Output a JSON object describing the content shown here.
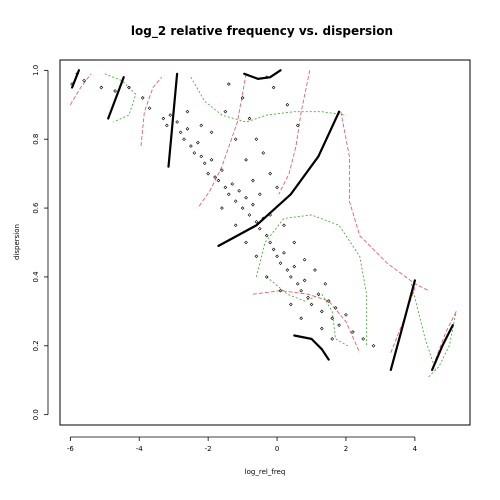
{
  "chart_data": {
    "type": "scatter",
    "title": "log_2 relative frequency vs. dispersion",
    "xlabel": "log_rel_freq",
    "ylabel": "dispersion",
    "xlim": [
      -6.3,
      5.6
    ],
    "ylim": [
      -0.03,
      1.03
    ],
    "xticks": [
      "-6",
      "-4",
      "-2",
      "0",
      "2",
      "4"
    ],
    "xtick_values": [
      -6,
      -4,
      -2,
      0,
      2,
      4
    ],
    "yticks": [
      "0.0",
      "0.2",
      "0.4",
      "0.6",
      "0.8",
      "1.0"
    ],
    "ytick_values": [
      0.0,
      0.2,
      0.4,
      0.6,
      0.8,
      1.0
    ],
    "grid": false,
    "colors": {
      "points": "#000000",
      "fit": "#000000",
      "band_red": "#e0607a",
      "band_green": "#4caf3a"
    },
    "points": [
      [
        -5.95,
        0.96
      ],
      [
        -5.8,
        0.99
      ],
      [
        -5.6,
        0.97
      ],
      [
        -5.1,
        0.95
      ],
      [
        -4.7,
        0.94
      ],
      [
        -4.3,
        0.95
      ],
      [
        -3.9,
        0.92
      ],
      [
        -3.7,
        0.89
      ],
      [
        -3.3,
        0.86
      ],
      [
        -3.2,
        0.84
      ],
      [
        -3.1,
        0.87
      ],
      [
        -2.9,
        0.85
      ],
      [
        -2.8,
        0.82
      ],
      [
        -2.7,
        0.8
      ],
      [
        -2.6,
        0.83
      ],
      [
        -2.5,
        0.78
      ],
      [
        -2.4,
        0.76
      ],
      [
        -2.3,
        0.79
      ],
      [
        -2.2,
        0.75
      ],
      [
        -2.1,
        0.73
      ],
      [
        -2.0,
        0.7
      ],
      [
        -1.9,
        0.74
      ],
      [
        -1.8,
        0.69
      ],
      [
        -1.7,
        0.68
      ],
      [
        -1.6,
        0.71
      ],
      [
        -1.5,
        0.66
      ],
      [
        -1.4,
        0.64
      ],
      [
        -1.3,
        0.67
      ],
      [
        -1.2,
        0.62
      ],
      [
        -1.1,
        0.65
      ],
      [
        -1.0,
        0.6
      ],
      [
        -0.9,
        0.63
      ],
      [
        -0.8,
        0.58
      ],
      [
        -0.7,
        0.61
      ],
      [
        -0.6,
        0.56
      ],
      [
        -0.5,
        0.54
      ],
      [
        -0.4,
        0.57
      ],
      [
        -0.3,
        0.52
      ],
      [
        -0.2,
        0.5
      ],
      [
        -0.1,
        0.48
      ],
      [
        0.0,
        0.46
      ],
      [
        0.1,
        0.44
      ],
      [
        0.2,
        0.47
      ],
      [
        0.3,
        0.42
      ],
      [
        0.4,
        0.4
      ],
      [
        0.5,
        0.43
      ],
      [
        0.6,
        0.38
      ],
      [
        0.7,
        0.36
      ],
      [
        0.8,
        0.39
      ],
      [
        0.9,
        0.34
      ],
      [
        1.0,
        0.32
      ],
      [
        1.2,
        0.35
      ],
      [
        1.3,
        0.3
      ],
      [
        1.5,
        0.33
      ],
      [
        1.6,
        0.28
      ],
      [
        1.8,
        0.26
      ],
      [
        2.0,
        0.29
      ],
      [
        2.2,
        0.24
      ],
      [
        2.5,
        0.22
      ],
      [
        2.8,
        0.2
      ],
      [
        -1.5,
        0.88
      ],
      [
        -1.0,
        0.92
      ],
      [
        -0.8,
        0.86
      ],
      [
        -0.6,
        0.8
      ],
      [
        -0.4,
        0.76
      ],
      [
        -0.2,
        0.7
      ],
      [
        0.0,
        0.66
      ],
      [
        -1.2,
        0.8
      ],
      [
        -0.9,
        0.74
      ],
      [
        -0.7,
        0.68
      ],
      [
        -0.5,
        0.64
      ],
      [
        -1.6,
        0.6
      ],
      [
        -1.2,
        0.55
      ],
      [
        -0.9,
        0.5
      ],
      [
        -0.6,
        0.46
      ],
      [
        -0.3,
        0.4
      ],
      [
        0.1,
        0.36
      ],
      [
        0.4,
        0.32
      ],
      [
        0.7,
        0.28
      ],
      [
        -0.2,
        0.58
      ],
      [
        0.2,
        0.55
      ],
      [
        0.5,
        0.5
      ],
      [
        0.8,
        0.45
      ],
      [
        1.1,
        0.42
      ],
      [
        1.4,
        0.38
      ],
      [
        1.7,
        0.31
      ],
      [
        -2.6,
        0.88
      ],
      [
        -2.2,
        0.84
      ],
      [
        -1.9,
        0.82
      ],
      [
        -0.3,
        0.98
      ],
      [
        -0.1,
        0.95
      ],
      [
        0.3,
        0.9
      ],
      [
        0.6,
        0.84
      ],
      [
        -1.4,
        0.96
      ],
      [
        1.3,
        0.25
      ],
      [
        1.6,
        0.22
      ]
    ],
    "fit_segments": [
      [
        [
          -5.95,
          0.95
        ],
        [
          -5.75,
          1.0
        ]
      ],
      [
        [
          -4.9,
          0.86
        ],
        [
          -4.45,
          0.98
        ]
      ],
      [
        [
          -3.15,
          0.72
        ],
        [
          -2.9,
          0.99
        ]
      ],
      [
        [
          -0.95,
          0.99
        ],
        [
          -0.55,
          0.975
        ],
        [
          -0.2,
          0.98
        ],
        [
          0.1,
          1.0
        ]
      ],
      [
        [
          -1.7,
          0.49
        ],
        [
          -0.6,
          0.55
        ],
        [
          0.4,
          0.64
        ],
        [
          1.2,
          0.75
        ],
        [
          1.8,
          0.88
        ]
      ],
      [
        [
          0.5,
          0.23
        ],
        [
          1.0,
          0.22
        ],
        [
          1.3,
          0.19
        ],
        [
          1.5,
          0.16
        ]
      ],
      [
        [
          3.3,
          0.13
        ],
        [
          3.6,
          0.24
        ],
        [
          4.0,
          0.39
        ]
      ],
      [
        [
          4.5,
          0.13
        ],
        [
          4.8,
          0.2
        ],
        [
          5.1,
          0.26
        ]
      ]
    ],
    "red_bands": [
      [
        [
          -6.0,
          0.9
        ],
        [
          -5.7,
          0.95
        ],
        [
          -5.4,
          0.99
        ]
      ],
      [
        [
          -4.75,
          0.9
        ],
        [
          -4.45,
          0.98
        ]
      ],
      [
        [
          -3.95,
          0.78
        ],
        [
          -3.85,
          0.88
        ],
        [
          -3.6,
          0.95
        ],
        [
          -3.35,
          0.98
        ]
      ],
      [
        [
          -0.9,
          0.99
        ],
        [
          -1.15,
          0.85
        ],
        [
          -1.6,
          0.72
        ],
        [
          -1.95,
          0.65
        ],
        [
          -2.3,
          0.6
        ]
      ],
      [
        [
          0.95,
          1.0
        ],
        [
          0.7,
          0.88
        ],
        [
          0.55,
          0.78
        ],
        [
          0.35,
          0.7
        ],
        [
          0.05,
          0.64
        ]
      ],
      [
        [
          1.85,
          0.88
        ],
        [
          2.1,
          0.75
        ],
        [
          2.1,
          0.62
        ],
        [
          2.4,
          0.52
        ],
        [
          3.2,
          0.44
        ],
        [
          4.0,
          0.38
        ],
        [
          4.4,
          0.36
        ]
      ],
      [
        [
          -0.7,
          0.35
        ],
        [
          0.1,
          0.36
        ],
        [
          0.9,
          0.35
        ],
        [
          1.5,
          0.33
        ],
        [
          2.0,
          0.27
        ],
        [
          2.4,
          0.18
        ]
      ],
      [
        [
          3.3,
          0.18
        ],
        [
          3.7,
          0.28
        ],
        [
          4.0,
          0.37
        ]
      ],
      [
        [
          4.6,
          0.16
        ],
        [
          4.9,
          0.24
        ],
        [
          5.2,
          0.3
        ]
      ]
    ],
    "green_bands": [
      [
        [
          -5.0,
          0.99
        ],
        [
          -4.5,
          0.97
        ],
        [
          -4.1,
          0.93
        ],
        [
          -4.3,
          0.87
        ],
        [
          -4.75,
          0.85
        ]
      ],
      [
        [
          -2.5,
          0.98
        ],
        [
          -2.1,
          0.91
        ],
        [
          -1.6,
          0.87
        ],
        [
          -0.9,
          0.85
        ],
        [
          -0.3,
          0.87
        ],
        [
          0.5,
          0.88
        ],
        [
          1.3,
          0.88
        ],
        [
          2.0,
          0.87
        ]
      ],
      [
        [
          -0.6,
          0.4
        ],
        [
          -0.35,
          0.5
        ],
        [
          0.2,
          0.57
        ],
        [
          1.0,
          0.58
        ],
        [
          1.8,
          0.55
        ],
        [
          2.4,
          0.46
        ],
        [
          2.6,
          0.35
        ],
        [
          2.6,
          0.2
        ]
      ],
      [
        [
          -0.3,
          0.4
        ],
        [
          0.3,
          0.35
        ],
        [
          0.8,
          0.33
        ],
        [
          1.3,
          0.35
        ],
        [
          1.6,
          0.3
        ],
        [
          1.7,
          0.22
        ],
        [
          2.05,
          0.2
        ]
      ],
      [
        [
          3.9,
          0.38
        ],
        [
          4.1,
          0.3
        ],
        [
          4.3,
          0.22
        ],
        [
          4.6,
          0.13
        ]
      ],
      [
        [
          4.4,
          0.11
        ],
        [
          4.7,
          0.14
        ],
        [
          5.0,
          0.2
        ],
        [
          5.2,
          0.3
        ]
      ]
    ]
  }
}
